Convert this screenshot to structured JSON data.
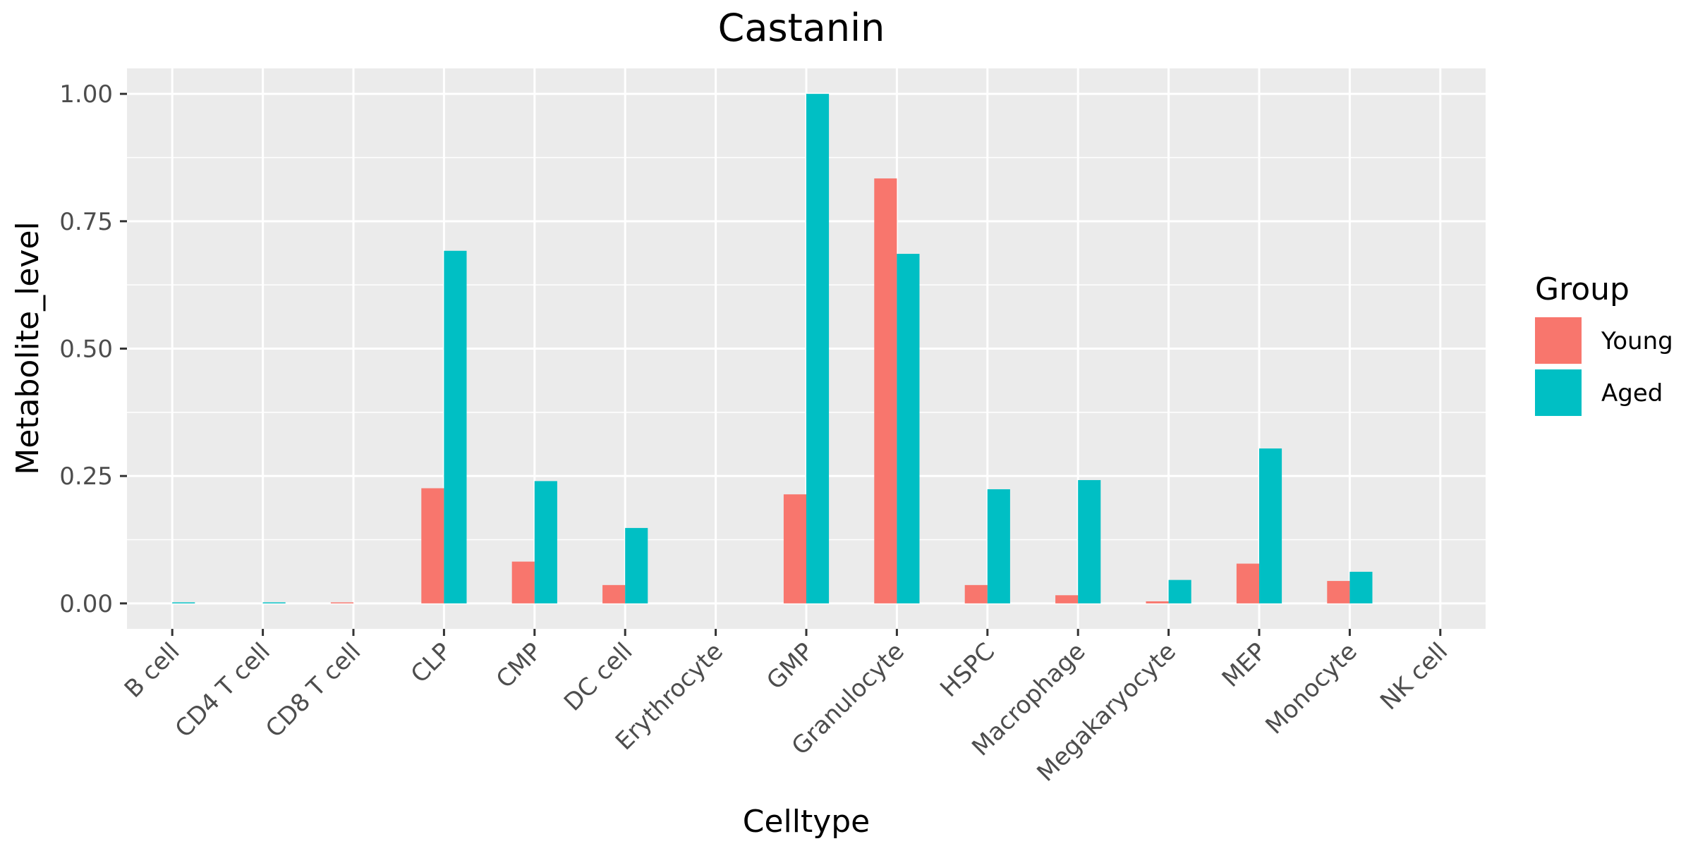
{
  "chart_data": {
    "type": "bar",
    "title": "Castanin",
    "xlabel": "Celltype",
    "ylabel": "Metabolite_level",
    "categories": [
      "B cell",
      "CD4 T cell",
      "CD8 T cell",
      "CLP",
      "CMP",
      "DC cell",
      "Erythrocyte",
      "GMP",
      "Granulocyte",
      "HSPC",
      "Macrophage",
      "Megakaryocyte",
      "MEP",
      "Monocyte",
      "NK cell"
    ],
    "series": [
      {
        "name": "Young",
        "color": "#F8766D",
        "values": [
          0,
          0,
          0.002,
          0.226,
          0.082,
          0.036,
          0,
          0.214,
          0.834,
          0.036,
          0.016,
          0.004,
          0.078,
          0.044,
          0
        ]
      },
      {
        "name": "Aged",
        "color": "#00BFC4",
        "values": [
          0.002,
          0.002,
          0,
          0.692,
          0.24,
          0.148,
          0,
          1.0,
          0.686,
          0.224,
          0.242,
          0.046,
          0.304,
          0.062,
          0
        ]
      }
    ],
    "ylim": [
      -0.05,
      1.05
    ],
    "yticks": [
      0,
      0.25,
      0.5,
      0.75,
      1.0
    ],
    "ytick_labels": [
      "0.00",
      "0.25",
      "0.50",
      "0.75",
      "1.00"
    ],
    "legend": {
      "title": "Group",
      "position": "right"
    },
    "grid": true
  }
}
